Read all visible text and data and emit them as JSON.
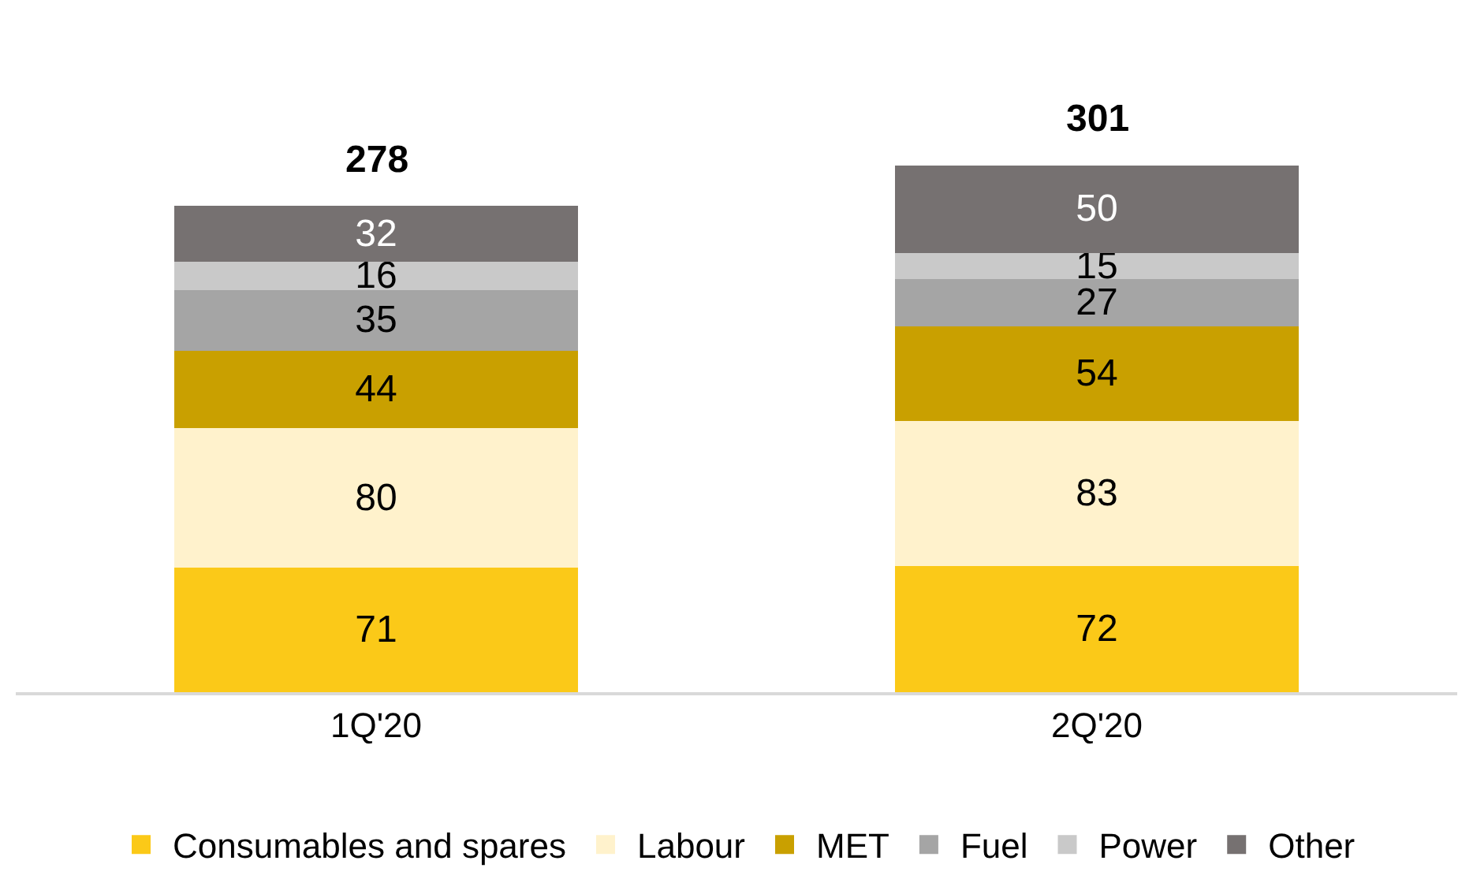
{
  "chart_data": {
    "type": "bar",
    "stacked": true,
    "categories": [
      "1Q'20",
      "2Q'20"
    ],
    "series": [
      {
        "name": "Consumables and spares",
        "color": "#fbc918",
        "values": [
          71,
          72
        ]
      },
      {
        "name": "Labour",
        "color": "#fff2cc",
        "values": [
          80,
          83
        ]
      },
      {
        "name": "MET",
        "color": "#c9a000",
        "values": [
          44,
          54
        ]
      },
      {
        "name": "Fuel",
        "color": "#a5a5a5",
        "values": [
          35,
          27
        ]
      },
      {
        "name": "Power",
        "color": "#c9c9c9",
        "values": [
          16,
          15
        ]
      },
      {
        "name": "Other",
        "color": "#767171",
        "values": [
          32,
          50
        ]
      }
    ],
    "data_labels": true,
    "totals": [
      "278",
      "301"
    ],
    "legend": "bottom"
  }
}
